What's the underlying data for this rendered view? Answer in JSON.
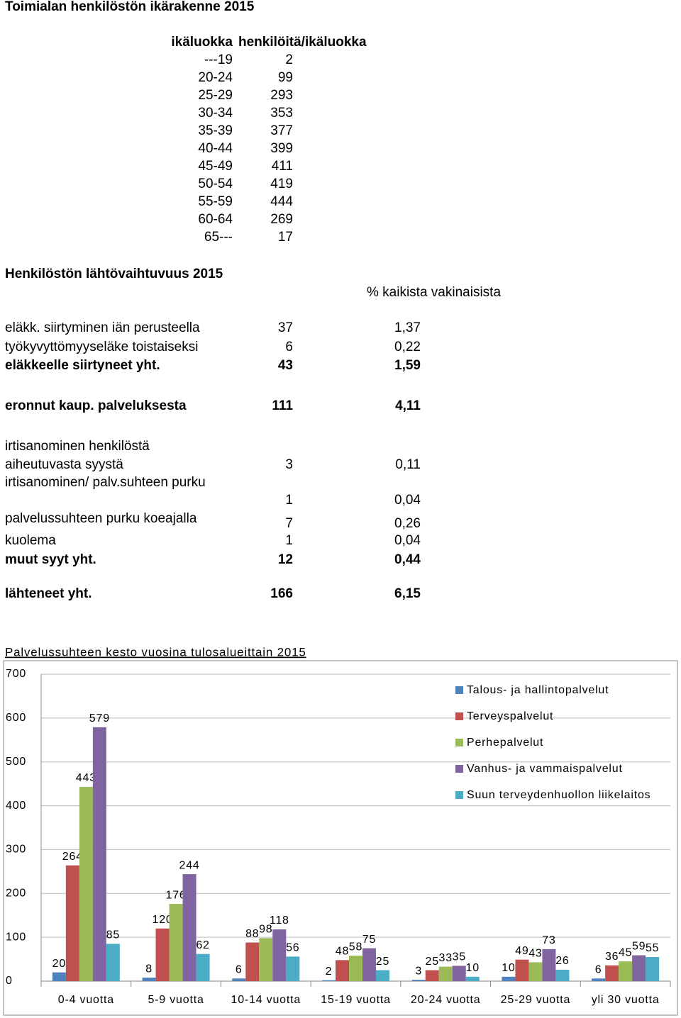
{
  "age_table": {
    "title": "Toimialan henkilöstön ikärakenne 2015",
    "columns": [
      "ikäluokka",
      "henkilöitä/ikäluokka"
    ],
    "rows": [
      [
        "---19",
        2
      ],
      [
        "20-24",
        99
      ],
      [
        "25-29",
        293
      ],
      [
        "30-34",
        353
      ],
      [
        "35-39",
        377
      ],
      [
        "40-44",
        399
      ],
      [
        "45-49",
        411
      ],
      [
        "50-54",
        419
      ],
      [
        "55-59",
        444
      ],
      [
        "60-64",
        269
      ],
      [
        "65---",
        17
      ]
    ]
  },
  "departures": {
    "title": "Henkilöstön lähtövaihtuvuus 2015",
    "percent_header": "% kaikista vakinaisista",
    "rows": [
      {
        "label": [
          "eläkk. siirtyminen iän perusteella"
        ],
        "count": 37,
        "percent": "1,37",
        "bold": false
      },
      {
        "label": [
          "työkyvyttömyyseläke toistaiseksi"
        ],
        "count": 6,
        "percent": "0,22",
        "bold": false
      },
      {
        "label": [
          "eläkkeelle siirtyneet yht."
        ],
        "count": 43,
        "percent": "1,59",
        "bold": true
      },
      {
        "label": [
          "eronnut kaup. palveluksesta"
        ],
        "count": 111,
        "percent": "4,11",
        "bold": true
      },
      {
        "label": [
          "irtisanominen henkilöstä",
          "aiheutuvasta syystä"
        ],
        "count": 3,
        "percent": "0,11",
        "bold": false
      },
      {
        "label": [
          "irtisanominen/ palv.suhteen purku"
        ],
        "count": 1,
        "percent": "0,04",
        "bold": false
      },
      {
        "label": [
          "palvelussuhteen purku koeajalla"
        ],
        "count": 7,
        "percent": "0,26",
        "bold": false
      },
      {
        "label": [
          "kuolema"
        ],
        "count": 1,
        "percent": "0,04",
        "bold": false
      },
      {
        "label": [
          "muut syyt yht."
        ],
        "count": 12,
        "percent": "0,44",
        "bold": true
      },
      {
        "label": [
          "lähteneet yht."
        ],
        "count": 166,
        "percent": "6,15",
        "bold": true
      }
    ]
  },
  "chart_data": {
    "type": "bar",
    "title": "Palvelussuhteen kesto vuosina tulosalueittain 2015",
    "categories": [
      "0-4 vuotta",
      "5-9 vuotta",
      "10-14 vuotta",
      "15-19 vuotta",
      "20-24 vuotta",
      "25-29 vuotta",
      "yli 30 vuotta"
    ],
    "series": [
      {
        "name": "Talous- ja hallintopalvelut",
        "color": "#4f81bd",
        "values": [
          20,
          8,
          6,
          2,
          3,
          10,
          6
        ]
      },
      {
        "name": "Terveyspalvelut",
        "color": "#c0504d",
        "values": [
          264,
          120,
          88,
          48,
          25,
          49,
          36
        ]
      },
      {
        "name": "Perhepalvelut",
        "color": "#9bbb59",
        "values": [
          443,
          176,
          98,
          58,
          33,
          43,
          45
        ]
      },
      {
        "name": "Vanhus- ja vammaispalvelut",
        "color": "#8064a2",
        "values": [
          579,
          244,
          118,
          75,
          35,
          73,
          59
        ]
      },
      {
        "name": "Suun terveydenhuollon liikelaitos",
        "color": "#4bacc6",
        "values": [
          85,
          62,
          56,
          25,
          10,
          26,
          55
        ]
      }
    ],
    "ylim": [
      0,
      700
    ],
    "yticks": [
      0,
      100,
      200,
      300,
      400,
      500,
      600,
      700
    ],
    "grid": true,
    "legend": "right"
  }
}
